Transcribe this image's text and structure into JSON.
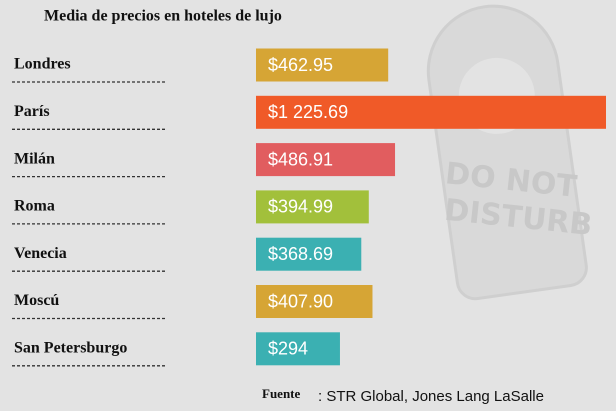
{
  "chart_data": {
    "type": "bar",
    "orientation": "horizontal",
    "title": "Media de precios en hoteles de lujo",
    "categories": [
      "Londres",
      "París",
      "Milán",
      "Roma",
      "Venecia",
      "Moscú",
      "San Petersburgo"
    ],
    "values": [
      462.95,
      1225.69,
      486.91,
      394.99,
      368.69,
      407.9,
      294
    ],
    "value_labels": [
      "$462.95",
      "$1 225.69",
      "$486.91",
      "$394.99",
      "$368.69",
      "$407.90",
      "$294"
    ],
    "colors": [
      "#d6a535",
      "#f05a28",
      "#e15d5f",
      "#a2c03b",
      "#3bb0b2",
      "#d6a535",
      "#3bb0b2"
    ],
    "source_label": "Fuente",
    "source": ": STR Global, Jones Lang LaSalle",
    "sign_text": [
      "DO NOT",
      "DISTURB"
    ]
  }
}
